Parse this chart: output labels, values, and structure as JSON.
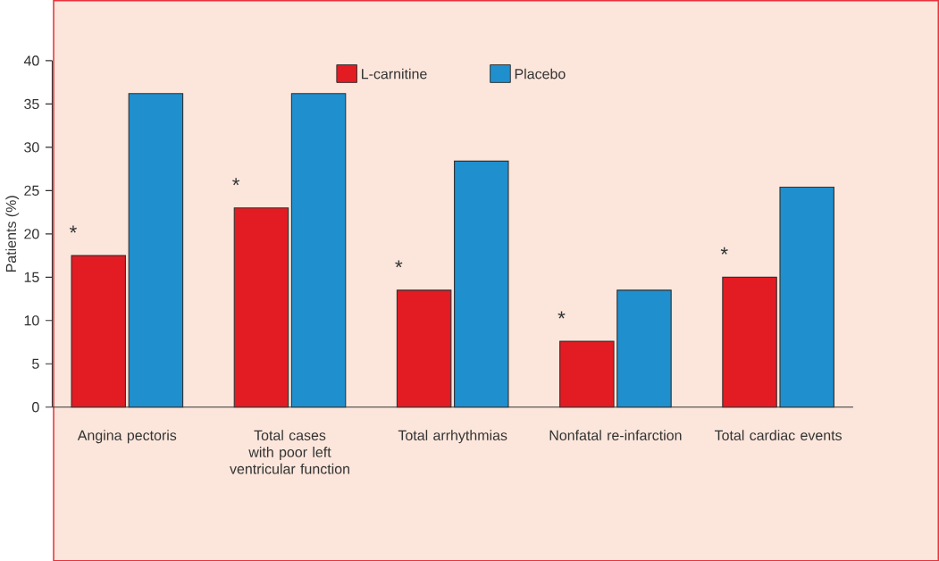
{
  "chart_data": {
    "type": "bar",
    "ylabel": "Patients (%)",
    "categories": [
      "Angina pectoris",
      "Total cases with poor left ventricular function",
      "Total arrhythmias",
      "Nonfatal re-infarction",
      "Total cardiac events"
    ],
    "series": [
      {
        "name": "L-carnitine",
        "color": "#e31b23",
        "values": [
          17.5,
          23.0,
          13.5,
          7.6,
          15.0
        ]
      },
      {
        "name": "Placebo",
        "color": "#1f8fce",
        "values": [
          36.2,
          36.2,
          28.4,
          13.5,
          25.4
        ]
      }
    ],
    "ylim": [
      0,
      40
    ],
    "yticks": [
      0,
      5,
      10,
      15,
      20,
      25,
      30,
      35,
      40
    ],
    "legend": "top",
    "annotations": [
      {
        "text": "*",
        "x": "Angina pectoris",
        "y": 17.5
      },
      {
        "text": "*",
        "x": "Total cases with poor left ventricular function",
        "y": 23.0
      },
      {
        "text": "*",
        "x": "Total arrhythmias",
        "y": 13.5
      },
      {
        "text": "*",
        "x": "Nonfatal re-infarction",
        "y": 7.6
      },
      {
        "text": "*",
        "x": "Total cardiac events",
        "y": 15.0
      }
    ]
  }
}
